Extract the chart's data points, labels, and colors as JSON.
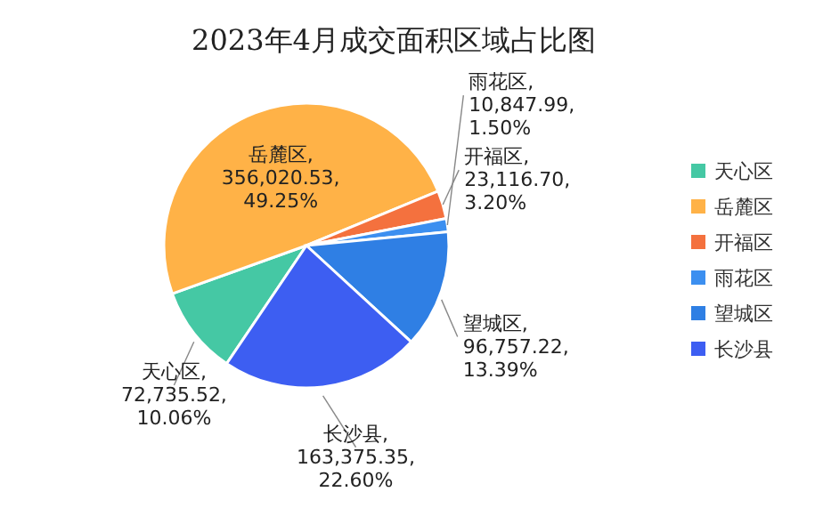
{
  "chart_data": {
    "type": "pie",
    "title": "2023年4月成交面积区域占比图",
    "categories": [
      "天心区",
      "岳麓区",
      "开福区",
      "雨花区",
      "望城区",
      "长沙县"
    ],
    "values": [
      72735.52,
      356020.53,
      23116.7,
      10847.99,
      96757.22,
      163375.35
    ],
    "colors": [
      "#45c8a4",
      "#ffb247",
      "#f4713e",
      "#3c8ff0",
      "#2f7fe4",
      "#3d5ef2"
    ],
    "value_labels": [
      "天心区,\n72,735.52,\n10.06%",
      "岳麓区,\n356,020.53,\n49.25%",
      "开福区,\n23,116.70,\n3.20%",
      "雨花区,\n10,847.99,\n1.50%",
      "望城区,\n96,757.22,\n13.39%",
      "长沙县,\n163,375.35,\n22.60%"
    ],
    "legend": "right"
  }
}
